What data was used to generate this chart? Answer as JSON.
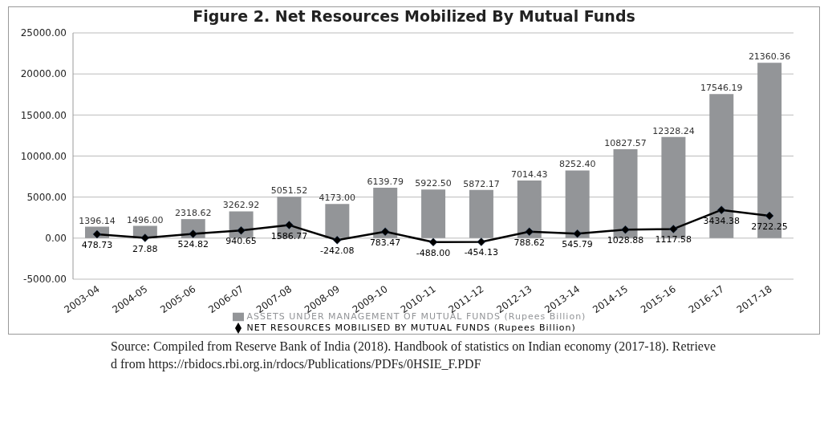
{
  "chart_data": {
    "type": "bar",
    "title": "Figure 2. Net Resources Mobilized By Mutual Funds",
    "categories": [
      "2003-04",
      "2004-05",
      "2005-06",
      "2006-07",
      "2007-08",
      "2008-09",
      "2009-10",
      "2010-11",
      "2011-12",
      "2012-13",
      "2013-14",
      "2014-15",
      "2015-16",
      "2016-17",
      "2017-18"
    ],
    "series": [
      {
        "name": "ASSETS UNDER MANAGEMENT OF MUTUAL FUNDS (Rupees Billion)",
        "color": "#939598",
        "values": [
          1396.14,
          1496.0,
          2318.62,
          3262.92,
          5051.52,
          4173.0,
          6139.79,
          5922.5,
          5872.17,
          7014.43,
          8252.4,
          10827.57,
          12328.24,
          17546.19,
          21360.36
        ],
        "value_labels": [
          "1396.14",
          "1496.00",
          "2318.62",
          "3262.92",
          "5051.52",
          "4173.00",
          "6139.79",
          "5922.50",
          "5872.17",
          "7014.43",
          "8252.40",
          "10827.57",
          "12328.24",
          "17546.19",
          "21360.36"
        ]
      },
      {
        "name": "NET RESOURCES MOBILISED BY MUTUAL FUNDS (Rupees Billion)",
        "type": "line",
        "color": "#000000",
        "values": [
          478.73,
          27.88,
          524.82,
          940.65,
          1586.77,
          -242.08,
          783.47,
          -488.0,
          -454.13,
          788.62,
          545.79,
          1028.88,
          1117.58,
          3434.38,
          2722.25
        ],
        "value_labels": [
          "478.73",
          "27.88",
          "524.82",
          "940.65",
          "1586.77",
          "-242.08",
          "783.47",
          "-488.00",
          "-454.13",
          "788.62",
          "545.79",
          "1028.88",
          "1117.58",
          "3434.38",
          "2722.25"
        ]
      }
    ],
    "ylim": [
      -5000,
      25000
    ],
    "yticks": [
      {
        "value": -5000,
        "label": "-5000.00"
      },
      {
        "value": 0,
        "label": "0.00"
      },
      {
        "value": 5000,
        "label": "5000.00"
      },
      {
        "value": 10000,
        "label": "10000.00"
      },
      {
        "value": 15000,
        "label": "15000.00"
      },
      {
        "value": 20000,
        "label": "20000.00"
      },
      {
        "value": 25000,
        "label": "25000.00"
      }
    ],
    "grid": "y",
    "legend": "bottom",
    "marker": "diamond",
    "annotations": [
      "Source: Compiled from Reserve Bank of India (2018). Handbook of statistics on  Indian economy (2017-18). Retrieved from https://rbidocs.rbi.org.in/rdocs/Publications/PDFs/0HSIE_F.PDF"
    ]
  }
}
